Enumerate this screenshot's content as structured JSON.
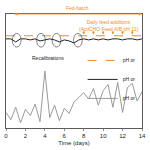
{
  "chart_data": {
    "type": "line",
    "x_title": "Time (days)",
    "x": [
      0,
      0.5,
      1,
      1.5,
      2,
      2.5,
      3,
      3.5,
      4,
      4.5,
      5,
      5.5,
      6,
      6.5,
      7,
      7.5,
      8,
      8.5,
      9,
      9.5,
      10,
      10.5,
      11,
      11.5,
      12,
      12.5,
      13,
      13.5,
      14
    ],
    "series": [
      {
        "name": "pH or",
        "color": "#f28c28",
        "line_style": "dash",
        "values": [
          8.9,
          8.9,
          8.9,
          8.9,
          8.9,
          8.9,
          8.9,
          8.9,
          8.9,
          8.9,
          8.9,
          8.9,
          8.9,
          8.9,
          8.9,
          8.9,
          8.9,
          8.9,
          8.9,
          8.9,
          8.9,
          8.9,
          8.9,
          8.9,
          8.9,
          8.9,
          8.9,
          8.9,
          8.9
        ]
      },
      {
        "name": "pH or",
        "color": "#222222",
        "line_style": "solid",
        "values": [
          8.6,
          8.6,
          8.3,
          8.6,
          8.6,
          8.5,
          8.6,
          8.4,
          8.5,
          8.6,
          8.5,
          8.3,
          8.5,
          8.4,
          8.2,
          8.5,
          8.6,
          8.5,
          8.6,
          8.5,
          8.6,
          8.5,
          8.6,
          8.6,
          8.5,
          8.6,
          8.6,
          8.5,
          8.6
        ]
      },
      {
        "name": "pH or",
        "color": "#9a9a9a",
        "line_style": "solid",
        "values": [
          1.5,
          0.8,
          2.0,
          0.5,
          1.8,
          1.2,
          2.3,
          0.6,
          5.5,
          1.0,
          2.2,
          0.7,
          1.9,
          1.4,
          2.5,
          3.0,
          3.4,
          2.8,
          3.8,
          2.2,
          3.6,
          4.2,
          2.0,
          4.4,
          1.5,
          3.9,
          4.3,
          2.6,
          3.5
        ]
      }
    ],
    "xlim": [
      0,
      14
    ],
    "xticks": [
      0,
      2,
      4,
      6,
      8,
      10,
      12,
      14
    ],
    "ylim": [
      0,
      11
    ],
    "tick_labels": "x",
    "legend": "right",
    "annotations": {
      "fed_batch": {
        "text": "Fed-batch",
        "x": [
          0.7,
          14
        ]
      },
      "recalibrations": {
        "text": "Recalibrations",
        "x": [
          1.1,
          3.6,
          5.2,
          7.4
        ]
      },
      "feed_additions": {
        "text": [
          "Daily feed additions",
          "(ActiCHO Feed A/B pH 11)"
        ],
        "x": [
          8,
          9,
          10,
          11,
          12,
          13
        ]
      }
    }
  }
}
